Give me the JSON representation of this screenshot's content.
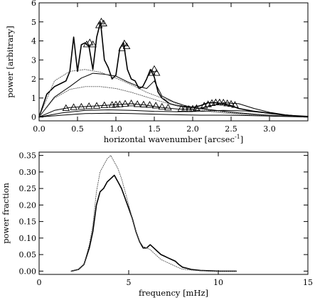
{
  "chart_data": [
    {
      "type": "line",
      "title": "",
      "xlabel": "horizontal wavenumber [arcsec",
      "xlabel_sup": "-1",
      "xlabel_close": "]",
      "ylabel": "power [arbitrary]",
      "xlim": [
        0.0,
        3.5
      ],
      "ylim": [
        -0.2,
        6.0
      ],
      "xticks": [
        "0.0",
        "0.5",
        "1.0",
        "1.5",
        "2.0",
        "2.5",
        "3.0"
      ],
      "xtick_values": [
        0.0,
        0.5,
        1.0,
        1.5,
        2.0,
        2.5,
        3.0
      ],
      "yticks": [
        "0",
        "1",
        "2",
        "3",
        "4",
        "5",
        "6"
      ],
      "ytick_values": [
        0,
        1,
        2,
        3,
        4,
        5,
        6
      ],
      "grid": false,
      "series": [
        {
          "style": "solid-thick",
          "x": [
            0.0,
            0.1,
            0.2,
            0.3,
            0.35,
            0.4,
            0.45,
            0.5,
            0.55,
            0.6,
            0.65,
            0.7,
            0.75,
            0.8,
            0.85,
            0.9,
            0.95,
            1.0,
            1.05,
            1.1,
            1.15,
            1.2,
            1.25,
            1.3,
            1.35,
            1.4,
            1.45,
            1.5,
            1.55,
            1.6,
            1.7,
            1.8,
            1.9,
            2.0,
            2.1,
            2.2,
            2.3,
            2.4,
            2.5,
            2.6,
            2.8,
            3.0,
            3.2,
            3.5
          ],
          "y": [
            0.0,
            1.2,
            1.6,
            1.8,
            1.9,
            2.4,
            4.2,
            2.4,
            3.8,
            3.9,
            3.7,
            2.5,
            4.2,
            5.0,
            3.0,
            2.6,
            2.0,
            2.2,
            3.6,
            3.9,
            2.5,
            2.0,
            1.9,
            1.5,
            1.6,
            2.0,
            2.5,
            2.1,
            1.3,
            1.0,
            0.7,
            0.6,
            0.55,
            0.5,
            0.6,
            0.75,
            0.75,
            0.7,
            0.6,
            0.45,
            0.3,
            0.2,
            0.1,
            0.03
          ]
        },
        {
          "style": "solid",
          "x": [
            0.0,
            0.2,
            0.4,
            0.55,
            0.7,
            0.85,
            1.0,
            1.15,
            1.3,
            1.4,
            1.5,
            1.6,
            1.75,
            1.9,
            2.1,
            2.3,
            2.6,
            2.9,
            3.2,
            3.5
          ],
          "y": [
            0.0,
            1.05,
            1.6,
            2.05,
            2.3,
            2.25,
            2.15,
            1.85,
            1.6,
            1.5,
            1.9,
            1.1,
            0.8,
            0.6,
            0.45,
            0.35,
            0.22,
            0.12,
            0.05,
            0.0
          ]
        },
        {
          "style": "dotted",
          "x": [
            0.0,
            0.2,
            0.4,
            0.6,
            0.8,
            1.0,
            1.2,
            1.4,
            1.6,
            1.8,
            2.0,
            2.3,
            2.6,
            3.0,
            3.5
          ],
          "y": [
            0.0,
            1.9,
            2.4,
            2.5,
            2.35,
            2.05,
            1.7,
            1.3,
            1.0,
            0.7,
            0.5,
            0.3,
            0.18,
            0.08,
            0.0
          ]
        },
        {
          "style": "dotted",
          "x": [
            0.0,
            0.2,
            0.4,
            0.6,
            0.8,
            1.0,
            1.2,
            1.4,
            1.6,
            1.8,
            2.0,
            2.3,
            2.6,
            3.0,
            3.5
          ],
          "y": [
            0.0,
            1.0,
            1.45,
            1.6,
            1.6,
            1.5,
            1.3,
            1.05,
            0.8,
            0.6,
            0.42,
            0.25,
            0.15,
            0.06,
            0.0
          ]
        },
        {
          "style": "solid",
          "x": [
            0.0,
            0.2,
            0.4,
            0.6,
            0.8,
            1.0,
            1.2,
            1.4,
            1.6,
            1.8,
            2.0,
            2.2,
            2.4,
            2.6,
            2.8,
            3.0,
            3.2,
            3.5
          ],
          "y": [
            0.0,
            0.35,
            0.5,
            0.55,
            0.6,
            0.65,
            0.7,
            0.62,
            0.5,
            0.42,
            0.4,
            0.55,
            0.75,
            0.7,
            0.45,
            0.25,
            0.12,
            0.0
          ]
        },
        {
          "style": "solid",
          "x": [
            0.0,
            0.3,
            0.6,
            0.9,
            1.2,
            1.5,
            1.8,
            2.1,
            2.4,
            2.7,
            3.0,
            3.3,
            3.5
          ],
          "y": [
            0.0,
            0.22,
            0.35,
            0.38,
            0.35,
            0.3,
            0.28,
            0.3,
            0.35,
            0.32,
            0.2,
            0.08,
            0.0
          ]
        },
        {
          "style": "solid",
          "x": [
            0.0,
            0.3,
            0.6,
            0.9,
            1.2,
            1.5,
            1.8,
            2.1,
            2.4,
            2.7,
            3.0,
            3.5
          ],
          "y": [
            0.0,
            0.1,
            0.18,
            0.2,
            0.18,
            0.15,
            0.12,
            0.1,
            0.1,
            0.08,
            0.05,
            0.0
          ]
        }
      ],
      "markers": {
        "symbol": "triangle",
        "x": [
          0.62,
          0.66,
          0.7,
          0.78,
          0.81,
          0.84,
          1.08,
          1.11,
          1.14,
          1.47,
          1.5,
          1.53,
          1.05,
          1.12,
          1.2,
          1.28,
          1.36,
          1.44,
          1.52,
          1.6,
          1.68,
          1.85,
          1.9,
          1.95,
          2.0,
          2.05,
          2.15,
          2.2,
          2.25,
          2.3,
          2.35,
          2.4,
          2.45,
          2.5,
          2.55,
          0.35,
          0.45,
          0.55,
          0.65,
          0.75,
          0.85,
          0.95,
          1.0
        ],
        "y": [
          3.8,
          3.9,
          3.8,
          4.8,
          5.0,
          4.9,
          3.6,
          3.85,
          3.7,
          2.3,
          2.5,
          2.3,
          0.65,
          0.68,
          0.7,
          0.66,
          0.64,
          0.62,
          0.58,
          0.52,
          0.48,
          0.42,
          0.42,
          0.4,
          0.42,
          0.45,
          0.58,
          0.65,
          0.72,
          0.75,
          0.75,
          0.74,
          0.7,
          0.67,
          0.62,
          0.45,
          0.5,
          0.52,
          0.55,
          0.57,
          0.6,
          0.62,
          0.64
        ]
      }
    },
    {
      "type": "line",
      "title": "",
      "xlabel": "frequency [mHz]",
      "ylabel": "power fraction",
      "xlim": [
        0,
        15
      ],
      "ylim": [
        -0.01,
        0.36
      ],
      "xticks": [
        "0",
        "5",
        "10",
        "15"
      ],
      "xtick_values": [
        0,
        5,
        10,
        15
      ],
      "yticks": [
        "0.00",
        "0.05",
        "0.10",
        "0.15",
        "0.20",
        "0.25",
        "0.30",
        "0.35"
      ],
      "ytick_values": [
        0.0,
        0.05,
        0.1,
        0.15,
        0.2,
        0.25,
        0.3,
        0.35
      ],
      "grid": false,
      "series": [
        {
          "style": "solid-thick",
          "x": [
            1.8,
            2.2,
            2.5,
            2.8,
            3.0,
            3.2,
            3.4,
            3.6,
            3.8,
            4.0,
            4.2,
            4.4,
            4.6,
            4.8,
            5.0,
            5.2,
            5.4,
            5.6,
            5.8,
            6.0,
            6.2,
            6.4,
            6.6,
            6.8,
            7.0,
            7.2,
            7.4,
            7.6,
            7.8,
            8.0,
            8.5,
            9.0,
            9.5,
            10.0,
            11.0
          ],
          "y": [
            0.0,
            0.005,
            0.02,
            0.07,
            0.12,
            0.2,
            0.24,
            0.25,
            0.27,
            0.28,
            0.29,
            0.27,
            0.25,
            0.22,
            0.19,
            0.16,
            0.12,
            0.09,
            0.07,
            0.07,
            0.08,
            0.07,
            0.06,
            0.05,
            0.045,
            0.04,
            0.035,
            0.03,
            0.02,
            0.012,
            0.005,
            0.002,
            0.001,
            0.0,
            0.0
          ]
        },
        {
          "style": "dotted",
          "x": [
            1.8,
            2.2,
            2.5,
            2.8,
            3.0,
            3.2,
            3.4,
            3.6,
            3.8,
            4.0,
            4.2,
            4.4,
            4.6,
            4.8,
            5.0,
            5.2,
            5.4,
            5.6,
            5.8,
            6.0,
            6.2,
            6.4,
            6.6,
            6.8,
            7.0,
            7.2,
            7.4,
            7.6,
            7.8,
            8.0,
            8.5,
            9.0,
            9.5,
            10.0,
            11.0
          ],
          "y": [
            0.0,
            0.005,
            0.02,
            0.08,
            0.14,
            0.24,
            0.3,
            0.32,
            0.34,
            0.35,
            0.33,
            0.31,
            0.28,
            0.24,
            0.2,
            0.16,
            0.12,
            0.09,
            0.075,
            0.07,
            0.065,
            0.055,
            0.045,
            0.035,
            0.03,
            0.025,
            0.02,
            0.015,
            0.01,
            0.006,
            0.003,
            0.001,
            0.0,
            0.0,
            0.0
          ]
        }
      ]
    }
  ]
}
